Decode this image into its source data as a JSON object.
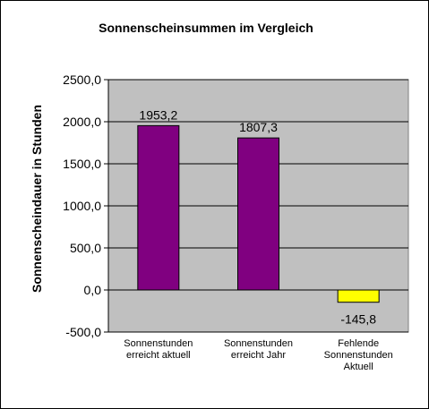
{
  "chart_data": {
    "type": "bar",
    "title": "Sonnenscheinsummen  im Vergleich",
    "ylabel": "Sonnenscheindauer  in Stunden",
    "xlabel": "",
    "ylim": [
      -500,
      2500
    ],
    "ytick_values": [
      2500,
      2000,
      1500,
      1000,
      500,
      0,
      -500
    ],
    "ytick_labels": [
      "2500,0",
      "2000,0",
      "1500,0",
      "1000,0",
      "500,0",
      "0,0",
      "-500,0"
    ],
    "grid": true,
    "legend": "none",
    "categories": [
      [
        "Sonnenstunden",
        "erreicht aktuell"
      ],
      [
        "Sonnenstunden",
        "erreicht Jahr"
      ],
      [
        "Fehlende",
        "Sonnenstunden",
        "Aktuell"
      ]
    ],
    "values": [
      1953.2,
      1807.3,
      -145.8
    ],
    "value_labels": [
      "1953,2",
      "1807,3",
      "-145,8"
    ],
    "colors": [
      "#800080",
      "#800080",
      "#ffff00"
    ],
    "plot_background": "#c0c0c0"
  }
}
